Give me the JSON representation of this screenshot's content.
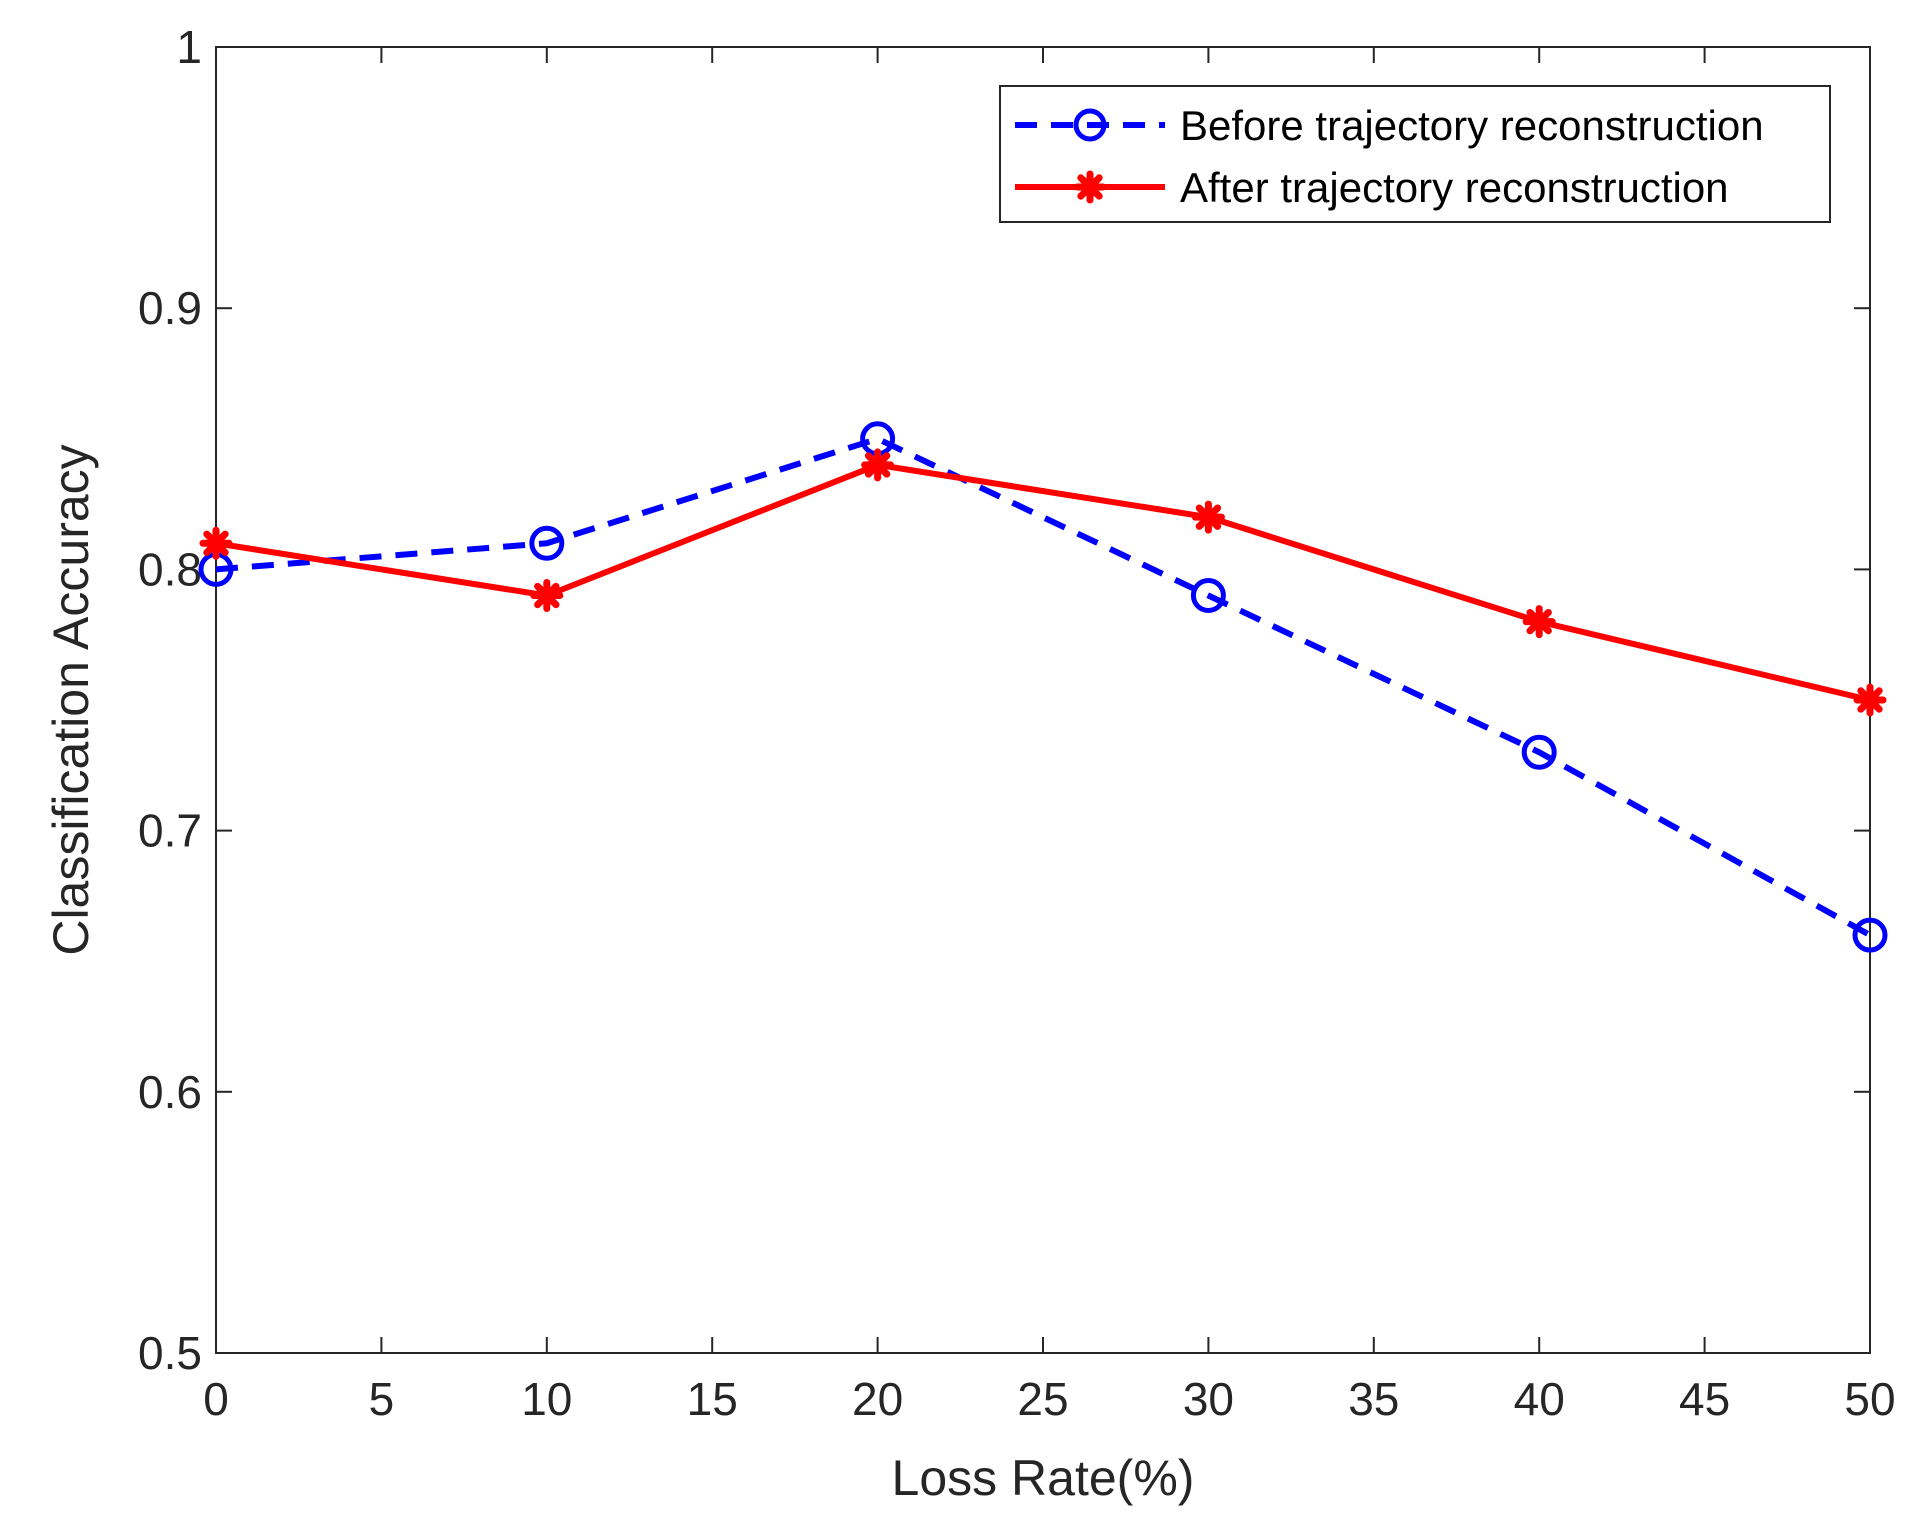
{
  "chart_data": {
    "type": "line",
    "title": "",
    "xlabel": "Loss Rate(%)",
    "ylabel": "Classification Accuracy",
    "xlim": [
      0,
      50
    ],
    "ylim": [
      0.5,
      1
    ],
    "xticks": [
      "0",
      "5",
      "10",
      "15",
      "20",
      "25",
      "30",
      "35",
      "40",
      "45",
      "50"
    ],
    "yticks": [
      "0.5",
      "0.6",
      "0.7",
      "0.8",
      "0.9",
      "1"
    ],
    "grid": false,
    "legend_position": "top-right",
    "x": [
      0,
      10,
      20,
      30,
      40,
      50
    ],
    "series": [
      {
        "name": "Before trajectory reconstruction",
        "values": [
          0.8,
          0.81,
          0.85,
          0.79,
          0.73,
          0.66
        ],
        "color": "#0000ff",
        "line": "dashed",
        "marker": "circle"
      },
      {
        "name": "After trajectory reconstruction",
        "values": [
          0.81,
          0.79,
          0.84,
          0.82,
          0.78,
          0.75
        ],
        "color": "#ff0000",
        "line": "solid",
        "marker": "asterisk"
      }
    ]
  }
}
